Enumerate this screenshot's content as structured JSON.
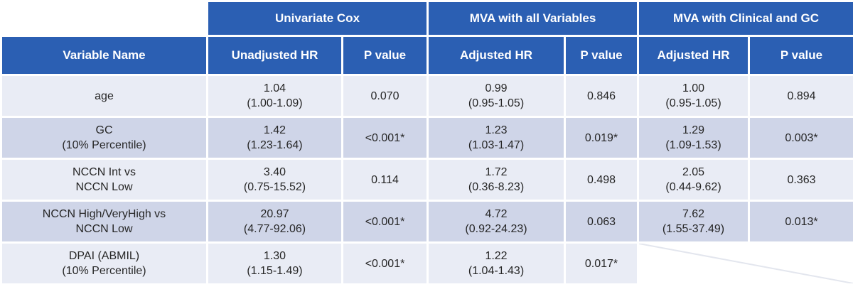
{
  "headers": {
    "groups": [
      "Univariate Cox",
      "MVA with all Variables",
      "MVA with Clinical and GC"
    ],
    "columns": [
      "Variable Name",
      "Unadjusted HR",
      "P value",
      "Adjusted HR",
      "P value",
      "Adjusted HR",
      "P value"
    ]
  },
  "rows": [
    {
      "variable": [
        "age"
      ],
      "uni_hr": [
        "1.04",
        "(1.00-1.09)"
      ],
      "uni_p": "0.070",
      "mva_all_hr": [
        "0.99",
        "(0.95-1.05)"
      ],
      "mva_all_p": "0.846",
      "mva_gc_hr": [
        "1.00",
        "(0.95-1.05)"
      ],
      "mva_gc_p": "0.894"
    },
    {
      "variable": [
        "GC",
        "(10% Percentile)"
      ],
      "uni_hr": [
        "1.42",
        "(1.23-1.64)"
      ],
      "uni_p": "<0.001*",
      "mva_all_hr": [
        "1.23",
        "(1.03-1.47)"
      ],
      "mva_all_p": "0.019*",
      "mva_gc_hr": [
        "1.29",
        "(1.09-1.53)"
      ],
      "mva_gc_p": "0.003*"
    },
    {
      "variable": [
        "NCCN Int vs",
        "NCCN Low"
      ],
      "uni_hr": [
        "3.40",
        "(0.75-15.52)"
      ],
      "uni_p": "0.114",
      "mva_all_hr": [
        "1.72",
        "(0.36-8.23)"
      ],
      "mva_all_p": "0.498",
      "mva_gc_hr": [
        "2.05",
        "(0.44-9.62)"
      ],
      "mva_gc_p": "0.363"
    },
    {
      "variable": [
        "NCCN High/VeryHigh vs",
        "NCCN Low"
      ],
      "uni_hr": [
        "20.97",
        "(4.77-92.06)"
      ],
      "uni_p": "<0.001*",
      "mva_all_hr": [
        "4.72",
        "(0.92-24.23)"
      ],
      "mva_all_p": "0.063",
      "mva_gc_hr": [
        "7.62",
        "(1.55-37.49)"
      ],
      "mva_gc_p": "0.013*"
    },
    {
      "variable": [
        "DPAI (ABMIL)",
        "(10% Percentile)"
      ],
      "uni_hr": [
        "1.30",
        "(1.15-1.49)"
      ],
      "uni_p": "<0.001*",
      "mva_all_hr": [
        "1.22",
        "(1.04-1.43)"
      ],
      "mva_all_p": "0.017*"
    }
  ],
  "colors": {
    "header_bg": "#2b5fb3",
    "header_text": "#ffffff",
    "row_light": "#e9ecf5",
    "row_dark": "#cfd5e8"
  }
}
